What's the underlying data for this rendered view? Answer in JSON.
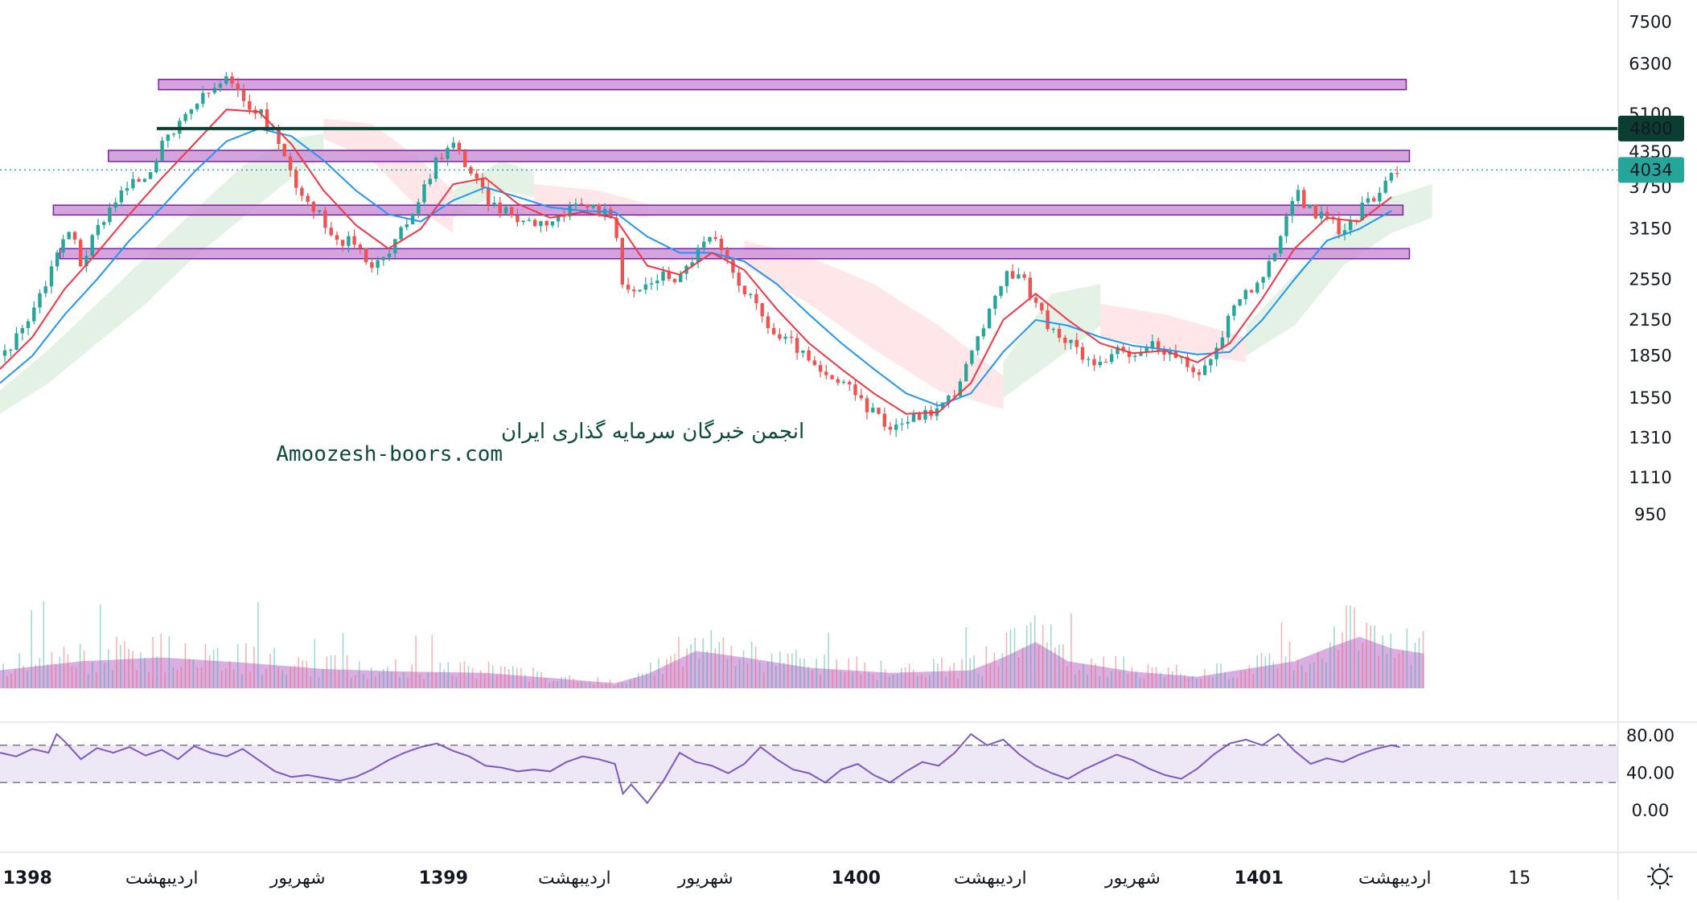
{
  "watermark": {
    "line1": "انجمن خبرگان سرمایه گذاری ایران",
    "line2": "Amoozesh-boors.com"
  },
  "colors": {
    "up": "#26a69a",
    "down": "#ef5350",
    "ma_fast": "#f23645",
    "ma_slow": "#2196f3",
    "cloud_bull": "#c8e6c9",
    "cloud_bear": "#ffcdd2",
    "zone_fill": "#ce93d8",
    "zone_stroke": "#7b1fa2",
    "level_line": "#0b3d33",
    "last_price_bg": "#26a69a",
    "rsi_line": "#7e57c2",
    "rsi_band": "#ede7f6",
    "volume_area": "#ce93d8"
  },
  "icons": {
    "settings": "sun-gear-icon"
  },
  "chart_data": {
    "type": "candlestick",
    "price_scale": "log",
    "ylim": [
      900,
      7800
    ],
    "price_ticks": [
      "7500",
      "6300",
      "5100",
      "4350",
      "3750",
      "3150",
      "2550",
      "2150",
      "1850",
      "1550",
      "1310",
      "1110",
      "950"
    ],
    "price_tick_values": [
      7500,
      6300,
      5100,
      4350,
      3750,
      3150,
      2550,
      2150,
      1850,
      1550,
      1310,
      1110,
      950
    ],
    "level_line": {
      "label": "4800",
      "value": 4800
    },
    "last_price": {
      "label": "4034",
      "value": 4034
    },
    "zones": [
      {
        "low": 5650,
        "high": 5900,
        "from": 0.098,
        "to": 0.869
      },
      {
        "low": 4180,
        "high": 4380,
        "from": 0.067,
        "to": 0.871
      },
      {
        "low": 3340,
        "high": 3480,
        "from": 0.033,
        "to": 0.867
      },
      {
        "low": 2780,
        "high": 2900,
        "from": 0.037,
        "to": 0.871
      }
    ],
    "time_labels": [
      {
        "text": "1398",
        "bold": true,
        "pos": 0.017
      },
      {
        "text": "اردیبهشت",
        "bold": false,
        "pos": 0.1
      },
      {
        "text": "شهریور",
        "bold": false,
        "pos": 0.184
      },
      {
        "text": "1399",
        "bold": true,
        "pos": 0.274
      },
      {
        "text": "اردیبهشت",
        "bold": false,
        "pos": 0.355
      },
      {
        "text": "شهریور",
        "bold": false,
        "pos": 0.436
      },
      {
        "text": "1400",
        "bold": true,
        "pos": 0.529
      },
      {
        "text": "اردیبهشت",
        "bold": false,
        "pos": 0.612
      },
      {
        "text": "شهریور",
        "bold": false,
        "pos": 0.7
      },
      {
        "text": "1401",
        "bold": true,
        "pos": 0.778
      },
      {
        "text": "اردیبهشت",
        "bold": false,
        "pos": 0.862
      },
      {
        "text": "15",
        "bold": false,
        "pos": 0.939
      }
    ],
    "close_path": [
      [
        0.0,
        1850
      ],
      [
        0.01,
        1990
      ],
      [
        0.02,
        2250
      ],
      [
        0.03,
        2580
      ],
      [
        0.037,
        3000
      ],
      [
        0.045,
        3100
      ],
      [
        0.05,
        2720
      ],
      [
        0.06,
        3150
      ],
      [
        0.07,
        3550
      ],
      [
        0.08,
        3780
      ],
      [
        0.09,
        3950
      ],
      [
        0.1,
        4450
      ],
      [
        0.11,
        4800
      ],
      [
        0.12,
        5300
      ],
      [
        0.13,
        5600
      ],
      [
        0.14,
        5900
      ],
      [
        0.15,
        5400
      ],
      [
        0.16,
        5150
      ],
      [
        0.17,
        4700
      ],
      [
        0.18,
        3950
      ],
      [
        0.19,
        3550
      ],
      [
        0.2,
        3250
      ],
      [
        0.21,
        3000
      ],
      [
        0.22,
        2980
      ],
      [
        0.23,
        2700
      ],
      [
        0.24,
        2820
      ],
      [
        0.25,
        3200
      ],
      [
        0.26,
        3650
      ],
      [
        0.27,
        4250
      ],
      [
        0.28,
        4500
      ],
      [
        0.29,
        4050
      ],
      [
        0.3,
        3600
      ],
      [
        0.31,
        3400
      ],
      [
        0.32,
        3300
      ],
      [
        0.33,
        3250
      ],
      [
        0.34,
        3270
      ],
      [
        0.35,
        3360
      ],
      [
        0.36,
        3480
      ],
      [
        0.37,
        3430
      ],
      [
        0.38,
        3300
      ],
      [
        0.385,
        2450
      ],
      [
        0.39,
        2380
      ],
      [
        0.4,
        2500
      ],
      [
        0.41,
        2600
      ],
      [
        0.42,
        2560
      ],
      [
        0.43,
        2860
      ],
      [
        0.44,
        3050
      ],
      [
        0.45,
        2700
      ],
      [
        0.46,
        2450
      ],
      [
        0.47,
        2200
      ],
      [
        0.48,
        2000
      ],
      [
        0.49,
        1950
      ],
      [
        0.5,
        1800
      ],
      [
        0.51,
        1680
      ],
      [
        0.52,
        1650
      ],
      [
        0.53,
        1560
      ],
      [
        0.54,
        1450
      ],
      [
        0.55,
        1380
      ],
      [
        0.56,
        1410
      ],
      [
        0.57,
        1450
      ],
      [
        0.58,
        1480
      ],
      [
        0.59,
        1600
      ],
      [
        0.6,
        1850
      ],
      [
        0.61,
        2150
      ],
      [
        0.62,
        2580
      ],
      [
        0.63,
        2650
      ],
      [
        0.64,
        2300
      ],
      [
        0.65,
        2050
      ],
      [
        0.66,
        1950
      ],
      [
        0.67,
        1850
      ],
      [
        0.68,
        1800
      ],
      [
        0.69,
        1880
      ],
      [
        0.7,
        1820
      ],
      [
        0.71,
        1950
      ],
      [
        0.72,
        1900
      ],
      [
        0.73,
        1800
      ],
      [
        0.74,
        1700
      ],
      [
        0.75,
        1850
      ],
      [
        0.76,
        2200
      ],
      [
        0.77,
        2450
      ],
      [
        0.78,
        2500
      ],
      [
        0.79,
        3000
      ],
      [
        0.8,
        3700
      ],
      [
        0.81,
        3400
      ],
      [
        0.82,
        3300
      ],
      [
        0.83,
        3100
      ],
      [
        0.84,
        3400
      ],
      [
        0.85,
        3650
      ],
      [
        0.86,
        4050
      ],
      [
        0.865,
        4034
      ]
    ],
    "ma_fast_path": [
      [
        0.0,
        1750
      ],
      [
        0.02,
        2000
      ],
      [
        0.04,
        2450
      ],
      [
        0.06,
        2850
      ],
      [
        0.08,
        3350
      ],
      [
        0.1,
        3900
      ],
      [
        0.12,
        4500
      ],
      [
        0.14,
        5200
      ],
      [
        0.16,
        5150
      ],
      [
        0.18,
        4500
      ],
      [
        0.2,
        3700
      ],
      [
        0.22,
        3200
      ],
      [
        0.24,
        2900
      ],
      [
        0.26,
        3150
      ],
      [
        0.28,
        3800
      ],
      [
        0.3,
        3900
      ],
      [
        0.32,
        3500
      ],
      [
        0.34,
        3300
      ],
      [
        0.36,
        3380
      ],
      [
        0.38,
        3300
      ],
      [
        0.4,
        2700
      ],
      [
        0.42,
        2600
      ],
      [
        0.44,
        2850
      ],
      [
        0.46,
        2650
      ],
      [
        0.48,
        2250
      ],
      [
        0.5,
        1950
      ],
      [
        0.52,
        1750
      ],
      [
        0.54,
        1580
      ],
      [
        0.56,
        1450
      ],
      [
        0.58,
        1460
      ],
      [
        0.6,
        1650
      ],
      [
        0.62,
        2150
      ],
      [
        0.64,
        2400
      ],
      [
        0.66,
        2150
      ],
      [
        0.68,
        1950
      ],
      [
        0.7,
        1870
      ],
      [
        0.72,
        1890
      ],
      [
        0.74,
        1800
      ],
      [
        0.76,
        1950
      ],
      [
        0.78,
        2350
      ],
      [
        0.8,
        2900
      ],
      [
        0.82,
        3300
      ],
      [
        0.84,
        3250
      ],
      [
        0.86,
        3600
      ]
    ],
    "ma_slow_path": [
      [
        0.0,
        1650
      ],
      [
        0.02,
        1850
      ],
      [
        0.04,
        2200
      ],
      [
        0.06,
        2550
      ],
      [
        0.08,
        3000
      ],
      [
        0.1,
        3450
      ],
      [
        0.12,
        4000
      ],
      [
        0.14,
        4550
      ],
      [
        0.16,
        4800
      ],
      [
        0.18,
        4650
      ],
      [
        0.2,
        4200
      ],
      [
        0.22,
        3700
      ],
      [
        0.24,
        3350
      ],
      [
        0.26,
        3250
      ],
      [
        0.28,
        3550
      ],
      [
        0.3,
        3750
      ],
      [
        0.32,
        3600
      ],
      [
        0.34,
        3450
      ],
      [
        0.36,
        3400
      ],
      [
        0.38,
        3380
      ],
      [
        0.4,
        3050
      ],
      [
        0.42,
        2850
      ],
      [
        0.44,
        2850
      ],
      [
        0.46,
        2750
      ],
      [
        0.48,
        2500
      ],
      [
        0.5,
        2200
      ],
      [
        0.52,
        1950
      ],
      [
        0.54,
        1750
      ],
      [
        0.56,
        1580
      ],
      [
        0.58,
        1500
      ],
      [
        0.6,
        1580
      ],
      [
        0.62,
        1880
      ],
      [
        0.64,
        2150
      ],
      [
        0.66,
        2100
      ],
      [
        0.68,
        2000
      ],
      [
        0.7,
        1930
      ],
      [
        0.72,
        1900
      ],
      [
        0.74,
        1860
      ],
      [
        0.76,
        1880
      ],
      [
        0.78,
        2150
      ],
      [
        0.8,
        2550
      ],
      [
        0.82,
        3000
      ],
      [
        0.84,
        3150
      ],
      [
        0.86,
        3400
      ]
    ],
    "cloud_segments": [
      {
        "kind": "bull",
        "points": [
          [
            0.0,
            1600,
            1450
          ],
          [
            0.03,
            1900,
            1650
          ],
          [
            0.06,
            2300,
            1950
          ],
          [
            0.09,
            2800,
            2300
          ],
          [
            0.12,
            3400,
            2800
          ],
          [
            0.15,
            4100,
            3300
          ],
          [
            0.18,
            4600,
            3900
          ],
          [
            0.2,
            4700,
            4300
          ]
        ]
      },
      {
        "kind": "bear",
        "points": [
          [
            0.2,
            5000,
            4600
          ],
          [
            0.23,
            4900,
            4200
          ],
          [
            0.26,
            4200,
            3400
          ],
          [
            0.28,
            3700,
            3100
          ]
        ]
      },
      {
        "kind": "bull",
        "points": [
          [
            0.28,
            3700,
            3300
          ],
          [
            0.31,
            4200,
            3700
          ],
          [
            0.33,
            4000,
            3600
          ]
        ]
      },
      {
        "kind": "bear",
        "points": [
          [
            0.33,
            3800,
            3400
          ],
          [
            0.37,
            3700,
            3400
          ],
          [
            0.4,
            3500,
            3300
          ]
        ]
      },
      {
        "kind": "bear",
        "points": [
          [
            0.46,
            3000,
            2700
          ],
          [
            0.5,
            2800,
            2300
          ],
          [
            0.54,
            2500,
            1900
          ],
          [
            0.58,
            2100,
            1600
          ],
          [
            0.62,
            1700,
            1480
          ]
        ]
      },
      {
        "kind": "bull",
        "points": [
          [
            0.62,
            1800,
            1550
          ],
          [
            0.65,
            2400,
            1800
          ],
          [
            0.68,
            2500,
            2100
          ]
        ]
      },
      {
        "kind": "bear",
        "points": [
          [
            0.68,
            2300,
            2000
          ],
          [
            0.72,
            2200,
            1900
          ],
          [
            0.77,
            2000,
            1800
          ]
        ]
      },
      {
        "kind": "bull",
        "points": [
          [
            0.77,
            2100,
            1850
          ],
          [
            0.8,
            2600,
            2100
          ],
          [
            0.83,
            3200,
            2700
          ],
          [
            0.86,
            3600,
            3100
          ],
          [
            0.885,
            3800,
            3300
          ]
        ]
      }
    ],
    "volume_path": [
      [
        0.0,
        28
      ],
      [
        0.05,
        42
      ],
      [
        0.1,
        48
      ],
      [
        0.15,
        40
      ],
      [
        0.2,
        30
      ],
      [
        0.25,
        26
      ],
      [
        0.3,
        24
      ],
      [
        0.35,
        14
      ],
      [
        0.38,
        8
      ],
      [
        0.4,
        22
      ],
      [
        0.43,
        58
      ],
      [
        0.46,
        48
      ],
      [
        0.5,
        32
      ],
      [
        0.55,
        24
      ],
      [
        0.6,
        28
      ],
      [
        0.62,
        48
      ],
      [
        0.64,
        72
      ],
      [
        0.66,
        42
      ],
      [
        0.7,
        26
      ],
      [
        0.74,
        18
      ],
      [
        0.77,
        30
      ],
      [
        0.8,
        42
      ],
      [
        0.82,
        62
      ],
      [
        0.84,
        80
      ],
      [
        0.86,
        62
      ],
      [
        0.88,
        54
      ]
    ],
    "rsi": {
      "ticks": [
        "80.00",
        "40.00",
        "0.00"
      ],
      "tick_values": [
        80,
        40,
        0
      ],
      "upper": 70,
      "lower": 30,
      "path": [
        [
          0.0,
          62
        ],
        [
          0.01,
          58
        ],
        [
          0.02,
          66
        ],
        [
          0.03,
          62
        ],
        [
          0.035,
          82
        ],
        [
          0.04,
          74
        ],
        [
          0.05,
          55
        ],
        [
          0.06,
          67
        ],
        [
          0.07,
          62
        ],
        [
          0.08,
          68
        ],
        [
          0.09,
          59
        ],
        [
          0.1,
          65
        ],
        [
          0.11,
          55
        ],
        [
          0.12,
          69
        ],
        [
          0.13,
          62
        ],
        [
          0.14,
          58
        ],
        [
          0.15,
          66
        ],
        [
          0.16,
          54
        ],
        [
          0.17,
          42
        ],
        [
          0.18,
          36
        ],
        [
          0.19,
          38
        ],
        [
          0.2,
          35
        ],
        [
          0.21,
          32
        ],
        [
          0.22,
          36
        ],
        [
          0.23,
          44
        ],
        [
          0.24,
          54
        ],
        [
          0.25,
          62
        ],
        [
          0.26,
          68
        ],
        [
          0.27,
          72
        ],
        [
          0.28,
          64
        ],
        [
          0.29,
          58
        ],
        [
          0.3,
          48
        ],
        [
          0.31,
          46
        ],
        [
          0.32,
          42
        ],
        [
          0.33,
          44
        ],
        [
          0.34,
          42
        ],
        [
          0.35,
          52
        ],
        [
          0.36,
          58
        ],
        [
          0.37,
          55
        ],
        [
          0.38,
          50
        ],
        [
          0.385,
          18
        ],
        [
          0.39,
          28
        ],
        [
          0.4,
          8
        ],
        [
          0.41,
          32
        ],
        [
          0.42,
          62
        ],
        [
          0.43,
          52
        ],
        [
          0.44,
          48
        ],
        [
          0.45,
          40
        ],
        [
          0.46,
          50
        ],
        [
          0.47,
          68
        ],
        [
          0.48,
          55
        ],
        [
          0.49,
          44
        ],
        [
          0.5,
          40
        ],
        [
          0.51,
          30
        ],
        [
          0.52,
          44
        ],
        [
          0.53,
          50
        ],
        [
          0.54,
          38
        ],
        [
          0.55,
          30
        ],
        [
          0.56,
          42
        ],
        [
          0.57,
          52
        ],
        [
          0.58,
          48
        ],
        [
          0.59,
          62
        ],
        [
          0.6,
          82
        ],
        [
          0.61,
          70
        ],
        [
          0.62,
          76
        ],
        [
          0.63,
          60
        ],
        [
          0.64,
          48
        ],
        [
          0.65,
          40
        ],
        [
          0.66,
          34
        ],
        [
          0.67,
          44
        ],
        [
          0.68,
          52
        ],
        [
          0.69,
          60
        ],
        [
          0.7,
          54
        ],
        [
          0.71,
          45
        ],
        [
          0.72,
          38
        ],
        [
          0.73,
          34
        ],
        [
          0.74,
          45
        ],
        [
          0.75,
          60
        ],
        [
          0.76,
          72
        ],
        [
          0.77,
          76
        ],
        [
          0.78,
          70
        ],
        [
          0.79,
          82
        ],
        [
          0.8,
          64
        ],
        [
          0.81,
          50
        ],
        [
          0.82,
          56
        ],
        [
          0.83,
          52
        ],
        [
          0.84,
          60
        ],
        [
          0.85,
          66
        ],
        [
          0.86,
          70
        ],
        [
          0.865,
          68
        ]
      ]
    }
  }
}
